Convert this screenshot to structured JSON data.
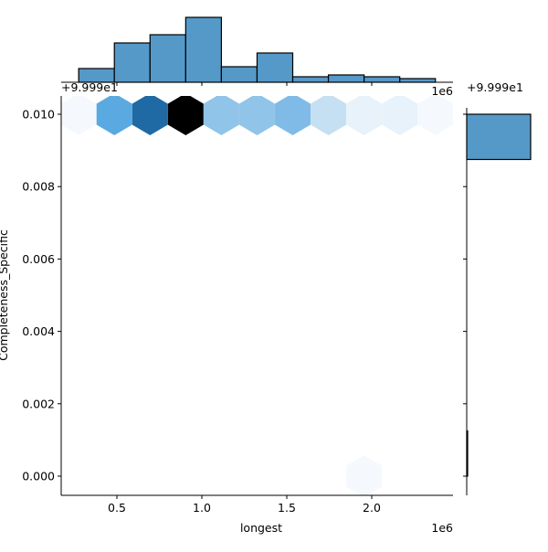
{
  "chart_data": {
    "type": "hexbin-jointplot",
    "xlabel": "longest",
    "ylabel": "Completeness_Specific",
    "x_offset_label": "1e6",
    "y_offset_label": "+9.999e1",
    "top_offset_label": "+9.999e1",
    "right_offset_label": "+9.999e1",
    "xlim": [
      172000,
      2478000
    ],
    "ylim": [
      -0.00053,
      0.0105
    ],
    "x_ticks": [
      {
        "v": 0.5,
        "label": "0.5"
      },
      {
        "v": 1.0,
        "label": "1.0"
      },
      {
        "v": 1.5,
        "label": "1.5"
      },
      {
        "v": 2.0,
        "label": "2.0"
      }
    ],
    "y_ticks": [
      {
        "v": 0.0,
        "label": "0.000"
      },
      {
        "v": 0.002,
        "label": "0.002"
      },
      {
        "v": 0.004,
        "label": "0.004"
      },
      {
        "v": 0.006,
        "label": "0.006"
      },
      {
        "v": 0.008,
        "label": "0.008"
      },
      {
        "v": 0.01,
        "label": "0.010"
      }
    ],
    "hexbins": [
      {
        "x": 0.275,
        "y": 0.01,
        "color": "#f5f9fd"
      },
      {
        "x": 0.485,
        "y": 0.01,
        "color": "#5aa9e1"
      },
      {
        "x": 0.695,
        "y": 0.01,
        "color": "#1f6aa5"
      },
      {
        "x": 0.905,
        "y": 0.01,
        "color": "#000000"
      },
      {
        "x": 1.115,
        "y": 0.01,
        "color": "#90c4e8"
      },
      {
        "x": 1.325,
        "y": 0.01,
        "color": "#90c4e8"
      },
      {
        "x": 1.535,
        "y": 0.01,
        "color": "#80bbe8"
      },
      {
        "x": 1.745,
        "y": 0.01,
        "color": "#c5dff3"
      },
      {
        "x": 1.955,
        "y": 0.01,
        "color": "#e8f2fa"
      },
      {
        "x": 2.165,
        "y": 0.01,
        "color": "#e8f2fa"
      },
      {
        "x": 2.375,
        "y": 0.01,
        "color": "#f5f9fd"
      },
      {
        "x": 1.955,
        "y": 0.0,
        "color": "#f5f9fd"
      }
    ],
    "top_hist": {
      "bin_edges": [
        0.275,
        0.485,
        0.695,
        0.905,
        1.115,
        1.325,
        1.535,
        1.745,
        1.955,
        2.165,
        2.375
      ],
      "counts": [
        15,
        43,
        52,
        71,
        17,
        32,
        6,
        8,
        6,
        4
      ],
      "color": "#5599c8"
    },
    "right_hist": {
      "bins": [
        {
          "y0": 0.00875,
          "y1": 0.01,
          "count": 70
        },
        {
          "y0": 0.0,
          "y1": 0.00125,
          "count": 1
        }
      ],
      "color": "#5599c8"
    }
  }
}
